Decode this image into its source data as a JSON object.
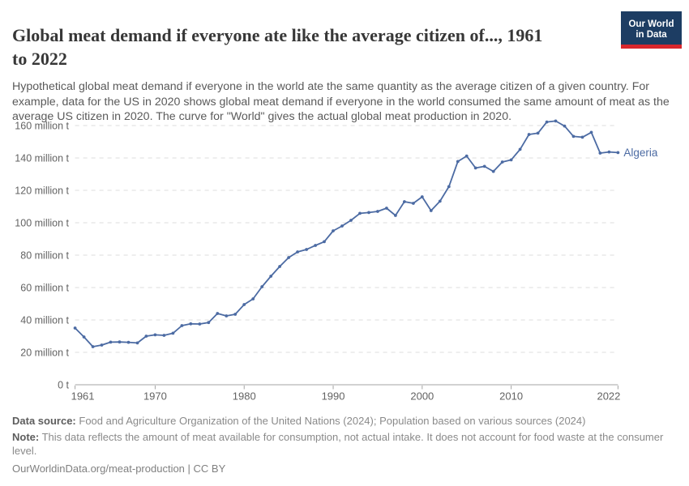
{
  "header": {
    "title_line1": "Global meat demand if everyone ate like the average citizen of..., 1961",
    "title_line2": "to 2022",
    "subtitle": "Hypothetical global meat demand if everyone in the world ate the same quantity as the average citizen of a given country. For example, data for the US in 2020 shows global meat demand if everyone in the world consumed the same amount of meat as the average US citizen in 2020. The curve for \"World\" gives the actual global meat production in 2020.",
    "logo": {
      "line1": "Our World",
      "line2": "in Data",
      "bg_color": "#1d3d63",
      "accent_color": "#d8262c"
    }
  },
  "chart_data": {
    "type": "line",
    "title": "Global meat demand if everyone ate like the average citizen of..., 1961 to 2022",
    "xlabel": "",
    "ylabel": "",
    "xlim": [
      1961,
      2022
    ],
    "ylim": [
      0,
      160
    ],
    "grid": "horizontal-dashed",
    "legend_position": "end-of-line-label",
    "x_ticks": [
      "1961",
      "1970",
      "1980",
      "1990",
      "2000",
      "2010",
      "2022"
    ],
    "x_tick_years": [
      1961,
      1970,
      1980,
      1990,
      2000,
      2010,
      2022
    ],
    "y_ticks": [
      0,
      20,
      40,
      60,
      80,
      100,
      120,
      140,
      160
    ],
    "y_tick_labels": [
      "0 t",
      "20 million t",
      "40 million t",
      "60 million t",
      "80 million t",
      "100 million t",
      "120 million t",
      "140 million t",
      "160 million t"
    ],
    "series": [
      {
        "name": "Algeria",
        "color": "#4c6ba3",
        "unit": "million t",
        "years": [
          1961,
          1962,
          1963,
          1964,
          1965,
          1966,
          1967,
          1968,
          1969,
          1970,
          1971,
          1972,
          1973,
          1974,
          1975,
          1976,
          1977,
          1978,
          1979,
          1980,
          1981,
          1982,
          1983,
          1984,
          1985,
          1986,
          1987,
          1988,
          1989,
          1990,
          1991,
          1992,
          1993,
          1994,
          1995,
          1996,
          1997,
          1998,
          1999,
          2000,
          2001,
          2002,
          2003,
          2004,
          2005,
          2006,
          2007,
          2008,
          2009,
          2010,
          2011,
          2012,
          2013,
          2014,
          2015,
          2016,
          2017,
          2018,
          2019,
          2020,
          2021,
          2022
        ],
        "values": [
          35,
          29.5,
          23.5,
          24.5,
          26.3,
          26.4,
          26.2,
          25.8,
          30,
          30.8,
          30.5,
          31.8,
          36.5,
          37.6,
          37.5,
          38.4,
          44,
          42.5,
          43.5,
          49.5,
          53,
          60.5,
          67,
          73,
          78.5,
          82,
          83.5,
          86,
          88.3,
          95,
          98,
          101.5,
          105.8,
          106.3,
          107,
          109,
          104.5,
          113,
          112,
          116,
          107.5,
          113.3,
          122.3,
          137.8,
          141.2,
          133.8,
          134.8,
          131.7,
          137.5,
          138.8,
          145.3,
          154.5,
          155.3,
          162.2,
          162.8,
          159.7,
          153.3,
          152.8,
          155.8,
          143,
          143.7,
          143.3
        ]
      }
    ],
    "colors": {
      "gridline": "#dcdcdc",
      "axis": "#a3a3a3",
      "tick_label": "#636363"
    }
  },
  "footer": {
    "data_source_label": "Data source:",
    "data_source": "Food and Agriculture Organization of the United Nations (2024); Population based on various sources (2024)",
    "note_label": "Note:",
    "note": "This data reflects the amount of meat available for consumption, not actual intake. It does not account for food waste at the consumer level.",
    "citation": "OurWorldinData.org/meat-production | CC BY"
  }
}
